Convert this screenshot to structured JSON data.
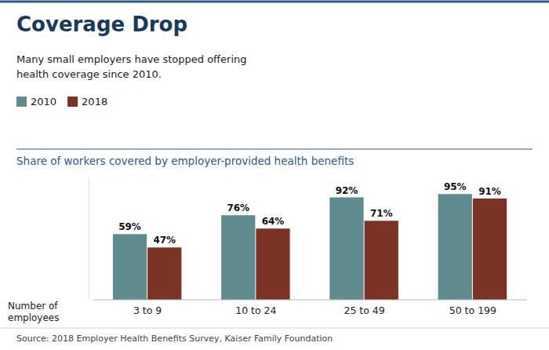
{
  "chart_data": {
    "type": "bar",
    "title": "Coverage Drop",
    "subtitle": "Many small employers have stopped offering\nhealth coverage since 2010.",
    "y_label": "Share of workers covered by employer-provided health benefits",
    "x_label": "Number of\nemployees",
    "source": "Source: 2018 Employer Health Benefits Survey, Kaiser Family Foundation",
    "categories": [
      "3 to 9",
      "10 to 24",
      "25 to 49",
      "50 to 199"
    ],
    "series": [
      {
        "name": "2010",
        "color": "#5f8b8e",
        "values": [
          59,
          76,
          92,
          95
        ],
        "value_labels": [
          "59%",
          "76%",
          "92%",
          "95%"
        ]
      },
      {
        "name": "2018",
        "color": "#7b3326",
        "values": [
          47,
          64,
          71,
          91
        ],
        "value_labels": [
          "47%",
          "64%",
          "71%",
          "91%"
        ]
      }
    ],
    "ylim": [
      0,
      110
    ],
    "grid": false,
    "legend": "upper left",
    "data_labels": true,
    "tick_labels": "x"
  }
}
